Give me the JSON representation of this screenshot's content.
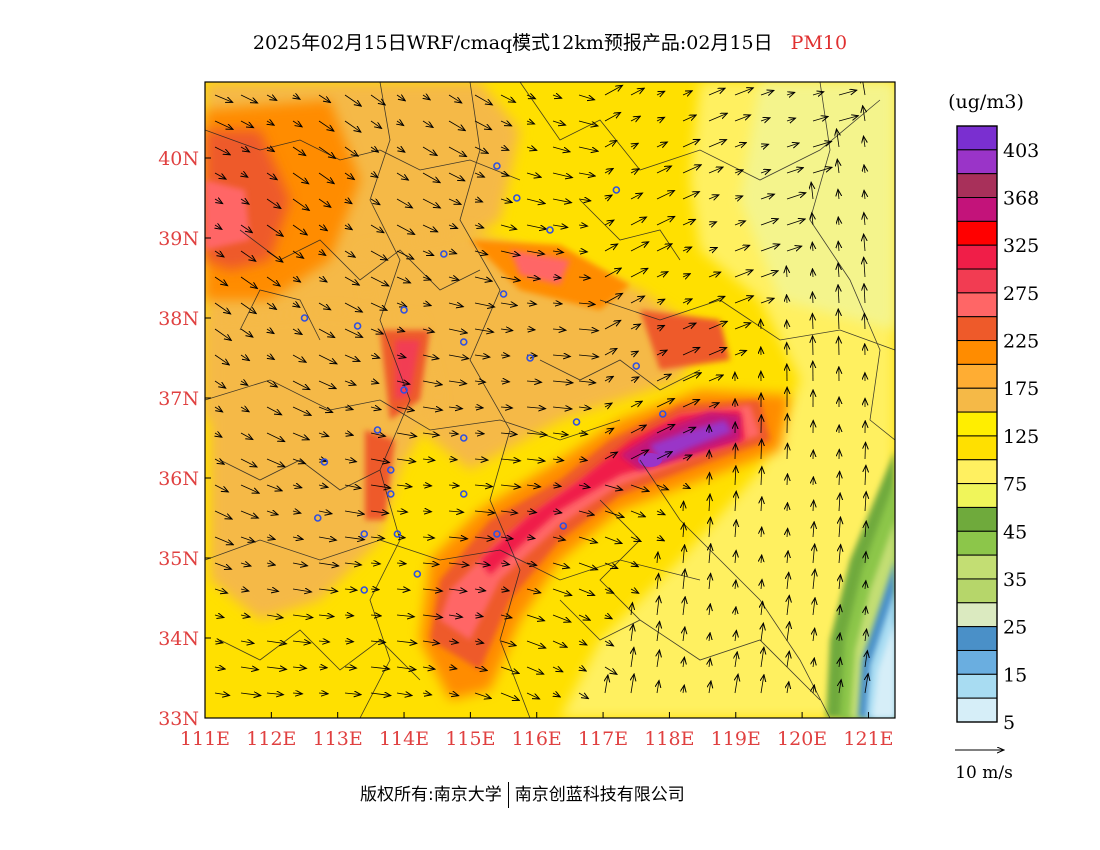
{
  "header": {
    "title": "2025年02月15日WRF/cmaq模式12km预报产品:02月15日",
    "pollutant": "PM10"
  },
  "map": {
    "lon_labels": [
      "111E",
      "112E",
      "113E",
      "114E",
      "115E",
      "116E",
      "117E",
      "118E",
      "119E",
      "120E",
      "121E"
    ],
    "lat_labels": [
      "40N",
      "39N",
      "38N",
      "37N",
      "36N",
      "35N",
      "34N",
      "33N"
    ],
    "axis_color": "#e04040"
  },
  "legend": {
    "unit": "(ug/m3)",
    "bins": [
      {
        "label": "403",
        "color": "#7a2fd0"
      },
      {
        "label": "",
        "color": "#9a34c8"
      },
      {
        "label": "368",
        "color": "#a8305a"
      },
      {
        "label": "",
        "color": "#c3137a"
      },
      {
        "label": "325",
        "color": "#ff0000"
      },
      {
        "label": "",
        "color": "#f01e48"
      },
      {
        "label": "275",
        "color": "#f23c52"
      },
      {
        "label": "",
        "color": "#ff6666"
      },
      {
        "label": "225",
        "color": "#ee5a2a"
      },
      {
        "label": "",
        "color": "#ff8c00"
      },
      {
        "label": "175",
        "color": "#ffad33"
      },
      {
        "label": "",
        "color": "#f5b947"
      },
      {
        "label": "125",
        "color": "#ffee00"
      },
      {
        "label": "",
        "color": "#ffe000"
      },
      {
        "label": "75",
        "color": "#fff060"
      },
      {
        "label": "",
        "color": "#f0f55a"
      },
      {
        "label": "45",
        "color": "#6faa3c"
      },
      {
        "label": "",
        "color": "#8cc64a"
      },
      {
        "label": "35",
        "color": "#c3de73"
      },
      {
        "label": "",
        "color": "#b6d66a"
      },
      {
        "label": "25",
        "color": "#dbeac0"
      },
      {
        "label": "",
        "color": "#4a90c8"
      },
      {
        "label": "15",
        "color": "#6aaee0"
      },
      {
        "label": "",
        "color": "#a8dcf2"
      },
      {
        "label": "5",
        "color": "#d6eef8"
      }
    ],
    "vector_label": "10 m/s"
  },
  "footer": {
    "copyright": "版权所有:南京大学",
    "company": "南京创蓝科技有限公司"
  },
  "stations": [
    {
      "lon": 115.4,
      "lat": 39.9
    },
    {
      "lon": 115.7,
      "lat": 39.5
    },
    {
      "lon": 116.2,
      "lat": 39.1
    },
    {
      "lon": 117.2,
      "lat": 39.6
    },
    {
      "lon": 114.6,
      "lat": 38.8
    },
    {
      "lon": 115.5,
      "lat": 38.3
    },
    {
      "lon": 112.5,
      "lat": 38.0
    },
    {
      "lon": 113.3,
      "lat": 37.9
    },
    {
      "lon": 114.0,
      "lat": 38.1
    },
    {
      "lon": 114.9,
      "lat": 37.7
    },
    {
      "lon": 115.9,
      "lat": 37.5
    },
    {
      "lon": 117.5,
      "lat": 37.4
    },
    {
      "lon": 114.0,
      "lat": 37.1
    },
    {
      "lon": 113.6,
      "lat": 36.6
    },
    {
      "lon": 114.9,
      "lat": 36.5
    },
    {
      "lon": 116.6,
      "lat": 36.7
    },
    {
      "lon": 117.9,
      "lat": 36.8
    },
    {
      "lon": 112.8,
      "lat": 36.2
    },
    {
      "lon": 113.8,
      "lat": 36.1
    },
    {
      "lon": 113.8,
      "lat": 35.8
    },
    {
      "lon": 114.9,
      "lat": 35.8
    },
    {
      "lon": 112.7,
      "lat": 35.5
    },
    {
      "lon": 113.4,
      "lat": 35.3
    },
    {
      "lon": 113.9,
      "lat": 35.3
    },
    {
      "lon": 115.4,
      "lat": 35.3
    },
    {
      "lon": 116.4,
      "lat": 35.4
    },
    {
      "lon": 113.4,
      "lat": 34.6
    },
    {
      "lon": 114.2,
      "lat": 34.8
    }
  ]
}
